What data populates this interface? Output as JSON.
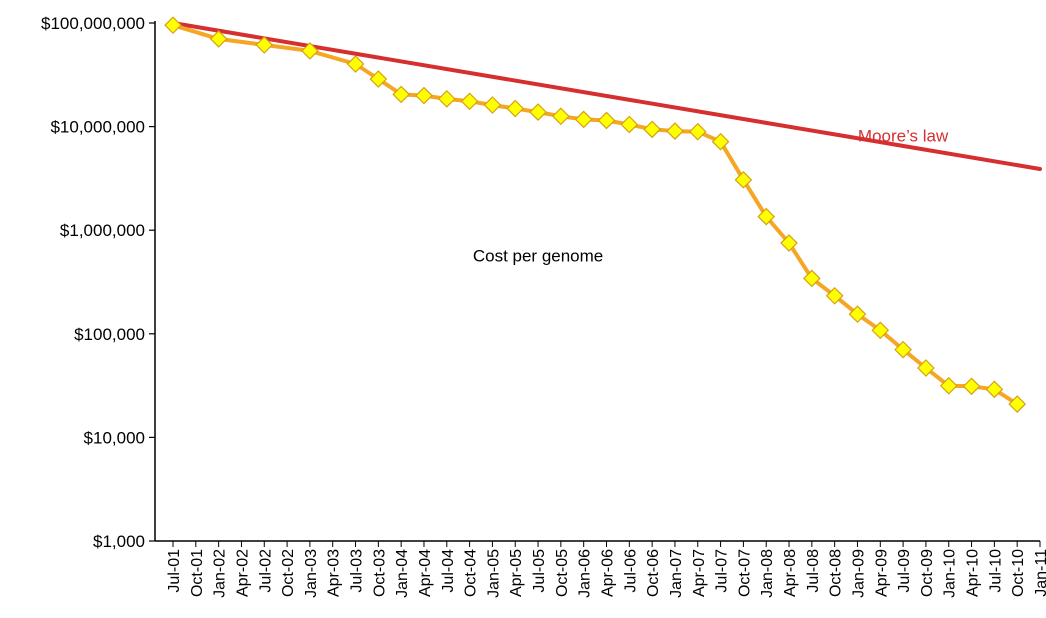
{
  "chart_data": {
    "type": "line",
    "title": "",
    "xlabel": "",
    "ylabel": "",
    "y_scale": "log10",
    "ylim": [
      1000,
      100000000
    ],
    "y_ticks": [
      {
        "value": 1000,
        "label": "$1,000"
      },
      {
        "value": 10000,
        "label": "$10,000"
      },
      {
        "value": 100000,
        "label": "$100,000"
      },
      {
        "value": 1000000,
        "label": "$1,000,000"
      },
      {
        "value": 10000000,
        "label": "$10,000,000"
      },
      {
        "value": 100000000,
        "label": "$100,000,000"
      }
    ],
    "grid": false,
    "legend": "none",
    "categories": [
      "Jul-01",
      "Oct-01",
      "Jan-02",
      "Apr-02",
      "Jul-02",
      "Oct-02",
      "Jan-03",
      "Apr-03",
      "Jul-03",
      "Oct-03",
      "Jan-04",
      "Apr-04",
      "Jul-04",
      "Oct-04",
      "Jan-05",
      "Apr-05",
      "Jul-05",
      "Oct-05",
      "Jan-06",
      "Apr-06",
      "Jul-06",
      "Oct-06",
      "Jan-07",
      "Apr-07",
      "Jul-07",
      "Oct-07",
      "Jan-08",
      "Apr-08",
      "Jul-08",
      "Oct-08",
      "Jan-09",
      "Apr-09",
      "Jul-09",
      "Oct-09",
      "Jan-10",
      "Apr-10",
      "Jul-10",
      "Oct-10",
      "Jan-11"
    ],
    "series": [
      {
        "name": "",
        "kind": "cost",
        "color": "#f5a623",
        "marker_fill": "#ffff00",
        "marker_stroke": "#d4a017",
        "values": [
          95263072,
          null,
          70175437,
          null,
          61448422,
          null,
          53751684,
          null,
          40157554,
          28780376,
          20442576,
          19934346,
          18519312,
          17534970,
          16159699,
          14952014,
          13801124,
          12585499,
          11732535,
          11455767,
          10474737,
          9408739,
          9047003,
          8927342,
          7147571,
          3063101,
          1352982,
          752080,
          342502,
          232735,
          154714,
          108065,
          70333,
          46774,
          31512,
          31125,
          29092,
          20963,
          null
        ]
      },
      {
        "name": "",
        "kind": "moore",
        "color": "#d62f2f",
        "points": [
          {
            "x": "Jul-01",
            "y": 100000000
          },
          {
            "x": "Jan-11",
            "y": 3900000
          }
        ]
      }
    ],
    "annotations": [
      {
        "text": "Moore’s law",
        "color": "#d62f2f",
        "x": "Jul-09",
        "y": 7200000
      },
      {
        "text": "Cost per genome",
        "color": "#000000",
        "x": "Jul-05",
        "y": 500000
      }
    ]
  }
}
